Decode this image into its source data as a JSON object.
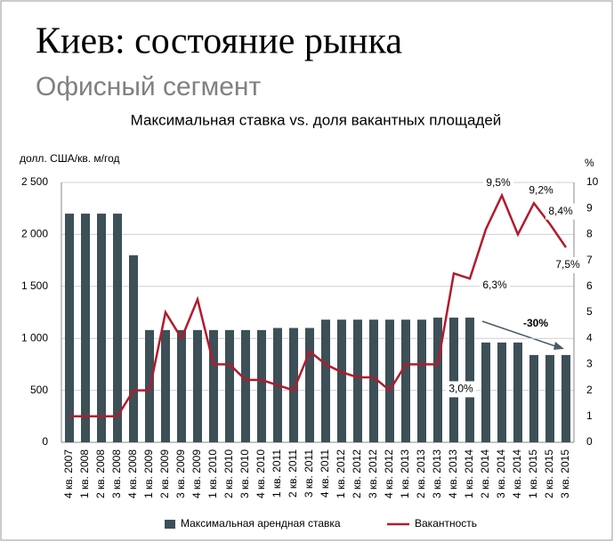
{
  "chart_data": {
    "type": "bar-line",
    "title": "Киев: состояние рынка",
    "subtitle": "Офисный сегмент",
    "chart_title": "Максимальная ставка vs. доля вакантных площадей",
    "y_label": "долл. США/кв. м/год",
    "y2_label": "%",
    "categories": [
      "4 кв. 2007",
      "1 кв. 2008",
      "2 кв. 2008",
      "3 кв. 2008",
      "4 кв. 2008",
      "1 кв. 2009",
      "2 кв. 2009",
      "3 кв. 2009",
      "4 кв. 2009",
      "1 кв. 2010",
      "2 кв. 2010",
      "3 кв. 2010",
      "4 кв. 2010",
      "1 кв. 2011",
      "2 кв. 2011",
      "3 кв. 2011",
      "4 кв. 2011",
      "1 кв. 2012",
      "2 кв. 2012",
      "3 кв. 2012",
      "4 кв. 2012",
      "1 кв. 2013",
      "2 кв. 2013",
      "3 кв. 2013",
      "4 кв. 2013",
      "1 кв. 2014",
      "2 кв. 2014",
      "3 кв. 2014",
      "4 кв. 2014",
      "1 кв. 2015",
      "2 кв. 2015",
      "3 кв. 2015"
    ],
    "series": [
      {
        "name": "Максимальная арендная ставка",
        "type": "bar",
        "color": "#3d4f57",
        "values": [
          2200,
          2200,
          2200,
          2200,
          1800,
          1080,
          1080,
          1080,
          1080,
          1080,
          1080,
          1080,
          1080,
          1100,
          1100,
          1100,
          1180,
          1180,
          1180,
          1180,
          1180,
          1180,
          1180,
          1200,
          1200,
          1200,
          960,
          960,
          960,
          840,
          840,
          840
        ]
      },
      {
        "name": "Вакантность",
        "type": "line",
        "axis": "y2",
        "color": "#b01c2e",
        "values": [
          1,
          1,
          1,
          1,
          2,
          2,
          5,
          4,
          5.5,
          3,
          3,
          2.4,
          2.4,
          2.2,
          2.0,
          3.5,
          3.0,
          2.7,
          2.5,
          2.5,
          2.0,
          3.0,
          3.0,
          3.0,
          6.5,
          6.3,
          8.2,
          9.5,
          8.0,
          9.2,
          8.4,
          7.5
        ],
        "value_labels": [
          null,
          null,
          null,
          null,
          null,
          null,
          null,
          null,
          null,
          null,
          null,
          null,
          null,
          null,
          null,
          null,
          null,
          null,
          null,
          null,
          null,
          null,
          null,
          "3,0%",
          null,
          "6,3%",
          null,
          "9,5%",
          null,
          "9,2%",
          "8,4%",
          "7,5%"
        ]
      }
    ],
    "ylim": [
      0,
      2500
    ],
    "yticks": [
      {
        "value": 0,
        "label": "0"
      },
      {
        "value": 500,
        "label": "500"
      },
      {
        "value": 1000,
        "label": "1 000"
      },
      {
        "value": 1500,
        "label": "1 500"
      },
      {
        "value": 2000,
        "label": "2 000"
      },
      {
        "value": 2500,
        "label": "2 500"
      }
    ],
    "y2lim": [
      0,
      10
    ],
    "y2ticks": [
      0,
      1,
      2,
      3,
      4,
      5,
      6,
      7,
      8,
      9,
      10
    ],
    "grid": true,
    "annotation": "-30%",
    "legend": "bottom"
  }
}
